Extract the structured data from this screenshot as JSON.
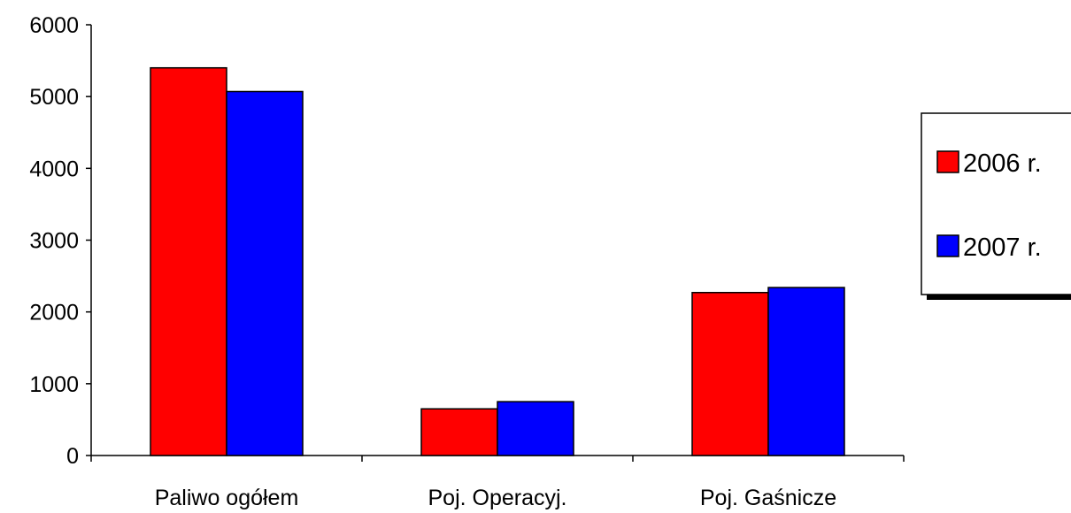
{
  "chart_data": {
    "type": "bar",
    "categories": [
      "Paliwo ogółem",
      "Poj. Operacyj.",
      "Poj. Gaśnicze"
    ],
    "series": [
      {
        "name": "2006 r.",
        "color": "#ff0000",
        "values": [
          5400,
          650,
          2270
        ]
      },
      {
        "name": "2007 r.",
        "color": "#0000ff",
        "values": [
          5070,
          750,
          2340
        ]
      }
    ],
    "yticks": [
      "0",
      "1000",
      "2000",
      "3000",
      "4000",
      "5000",
      "6000"
    ],
    "ylim": [
      0,
      6000
    ],
    "grid": false,
    "legend_position": "right"
  }
}
